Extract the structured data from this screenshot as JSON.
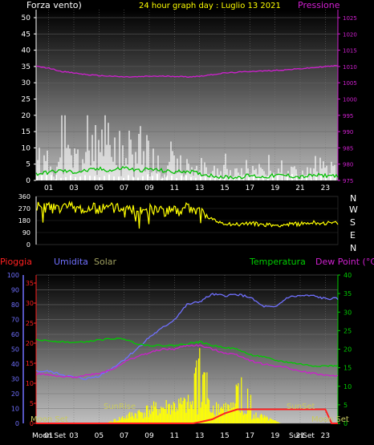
{
  "header": {
    "left_title": "Forza vento)",
    "center_title": "24 hour graph day : Luglio 13 2021",
    "right_title": "Pressione"
  },
  "bottom_header": {
    "rain_label": "Pioggia",
    "humidity_label": "Umidita",
    "solar_label": "Solar",
    "temp_label": "Temperatura",
    "dew_label": "Dew Point (°C)"
  },
  "wind_dir_labels": [
    "N",
    "W",
    "S",
    "E",
    "N"
  ],
  "annotations": {
    "moon_set_left": "Moon Set",
    "sunrise": "SunRise",
    "sunset": "SunSet",
    "moon_set_right": "Moon Set",
    "bottom_row_left": "Moon Set",
    "bottom_row_right": "SunSet"
  },
  "colors": {
    "wind": "#ffffff",
    "gust": "#d0d0d0",
    "avg_wind": "#00c000",
    "pressure": "#d020d0",
    "direction": "#ffff00",
    "humidity": "#7070ff",
    "solar": "#ffff00",
    "rain": "#ff2020",
    "temperature": "#00cc00",
    "dewpoint": "#cc20cc",
    "title_yellow": "#ffff00",
    "title_white": "#ffffff",
    "title_magenta": "#d020d0"
  },
  "chart_data": [
    {
      "type": "line",
      "title": "24 hour graph day : Luglio 13 2021",
      "x_ticks": [
        "01",
        "03",
        "05",
        "07",
        "09",
        "11",
        "13",
        "15",
        "17",
        "19",
        "21",
        "23"
      ],
      "xlim": [
        0,
        24
      ],
      "left_axis": {
        "label": "Forza vento)",
        "ylim": [
          0,
          50
        ],
        "ticks": [
          0,
          5,
          10,
          15,
          20,
          25,
          30,
          35,
          40,
          45,
          50
        ]
      },
      "right_axis": {
        "label": "Pressione",
        "ylim": [
          975,
          1025
        ],
        "ticks": [
          975,
          980,
          985,
          990,
          995,
          1000,
          1005,
          1010,
          1015,
          1020,
          1025
        ]
      },
      "series": [
        {
          "name": "Pressione",
          "axis": "right",
          "x": [
            0,
            1,
            2,
            3,
            4,
            5,
            6,
            7,
            8,
            9,
            10,
            11,
            12,
            13,
            14,
            15,
            16,
            17,
            18,
            19,
            20,
            21,
            22,
            23,
            24
          ],
          "values": [
            1010,
            1009.5,
            1008.5,
            1008,
            1007.5,
            1007.2,
            1007,
            1006.8,
            1006.8,
            1007,
            1007,
            1007,
            1006.8,
            1007,
            1007.5,
            1008,
            1008.2,
            1008.5,
            1008.6,
            1008.8,
            1009,
            1009.3,
            1009.6,
            1010,
            1010.2
          ]
        },
        {
          "axis": "left",
          "x": [
            0,
            1,
            2,
            3,
            4,
            5,
            6,
            7,
            8,
            9,
            10,
            11,
            12,
            13,
            14,
            15,
            16,
            17,
            18,
            19,
            20,
            21,
            22,
            23,
            24
          ],
          "values": [
            2,
            2.5,
            3,
            2.5,
            3,
            3.5,
            3,
            4,
            3,
            3.5,
            3,
            2.5,
            3,
            2,
            1.5,
            1,
            1,
            1.5,
            1,
            1.5,
            1.5,
            1,
            1.5,
            1.5,
            1.5
          ]
        }
      ],
      "wind_bars": {
        "axis": "left",
        "description_values": "gust spikes 0-20 km/h"
      }
    },
    {
      "type": "line",
      "title": "",
      "xlim": [
        0,
        24
      ],
      "left_axis": {
        "ylim": [
          0,
          360
        ],
        "ticks": [
          0,
          90,
          180,
          270,
          360
        ]
      },
      "series": [
        {
          "axis": "left",
          "x": [
            0,
            1,
            2,
            3,
            4,
            5,
            6,
            7,
            8,
            9,
            10,
            11,
            12,
            13,
            14,
            15,
            16,
            17,
            18,
            19,
            20,
            21,
            22,
            23,
            24
          ],
          "values": [
            290,
            270,
            285,
            280,
            260,
            270,
            275,
            260,
            280,
            265,
            255,
            250,
            270,
            250,
            185,
            160,
            150,
            160,
            150,
            145,
            150,
            155,
            165,
            160,
            160
          ]
        }
      ]
    },
    {
      "type": "line",
      "title": "",
      "x_ticks": [
        "01",
        "03",
        "05",
        "07",
        "09",
        "11",
        "13",
        "15",
        "17",
        "19",
        "21",
        "23"
      ],
      "xlim": [
        0,
        24
      ],
      "left_axis": {
        "label": "Pioggia",
        "ylim": [
          0,
          100
        ],
        "ticks": [
          0,
          10,
          20,
          30,
          40,
          50,
          60,
          70,
          80,
          90,
          100
        ]
      },
      "mid_axis": {
        "ylim": [
          0,
          35
        ],
        "ticks": [
          0,
          5,
          10,
          15,
          20,
          25,
          30,
          35
        ]
      },
      "right_axis": {
        "label": "Dew Point (°C)",
        "ylim": [
          0,
          40
        ],
        "ticks": [
          0,
          5,
          10,
          15,
          20,
          25,
          30,
          35,
          40
        ]
      },
      "series": [
        {
          "name": "Umidita",
          "axis": "left",
          "x": [
            0,
            1,
            2,
            3,
            4,
            5,
            6,
            7,
            8,
            9,
            10,
            11,
            12,
            13,
            14,
            15,
            16,
            17,
            18,
            19,
            20,
            21,
            22,
            23,
            24
          ],
          "values": [
            35,
            35,
            33,
            31,
            30,
            32,
            37,
            43,
            50,
            58,
            64,
            70,
            80,
            82,
            87,
            86,
            87,
            85,
            79,
            78,
            85,
            86,
            86,
            84,
            84
          ]
        },
        {
          "name": "Temperatura",
          "axis": "right",
          "x": [
            0,
            1,
            2,
            3,
            4,
            5,
            6,
            7,
            8,
            9,
            10,
            11,
            12,
            13,
            14,
            15,
            16,
            17,
            18,
            19,
            20,
            21,
            22,
            23,
            24
          ],
          "values": [
            22.5,
            22.3,
            22,
            21.8,
            22,
            22.5,
            22.8,
            22.8,
            21.5,
            21,
            21,
            21,
            21.5,
            22,
            21,
            20.5,
            20,
            18.5,
            18,
            17,
            16.5,
            16,
            15.5,
            15.5,
            15.5
          ]
        },
        {
          "name": "Dew Point (°C)",
          "axis": "right",
          "x": [
            0,
            1,
            2,
            3,
            4,
            5,
            6,
            7,
            8,
            9,
            10,
            11,
            12,
            13,
            14,
            15,
            16,
            17,
            18,
            19,
            20,
            21,
            22,
            23,
            24
          ],
          "values": [
            13.5,
            13,
            12.5,
            12.5,
            13,
            13.5,
            14.5,
            16.5,
            18,
            19,
            20,
            20,
            21,
            21,
            20,
            19,
            18.5,
            17,
            16,
            15.5,
            15,
            14,
            13.5,
            13,
            12.8
          ]
        },
        {
          "name": "Pioggia",
          "axis": "mid",
          "x": [
            0,
            12.5,
            13,
            14,
            15,
            16,
            17,
            18,
            19,
            19.5,
            20,
            21,
            22,
            23,
            23.5,
            24
          ],
          "values": [
            0,
            0,
            0.3,
            1,
            2.5,
            3.5,
            3.5,
            3.5,
            3.5,
            3.5,
            3.5,
            3.5,
            3.5,
            3.5,
            0,
            0
          ]
        }
      ],
      "solar_bars": {
        "axis": "mid",
        "peak_at_hour": 13,
        "peak_value": 20
      }
    }
  ]
}
